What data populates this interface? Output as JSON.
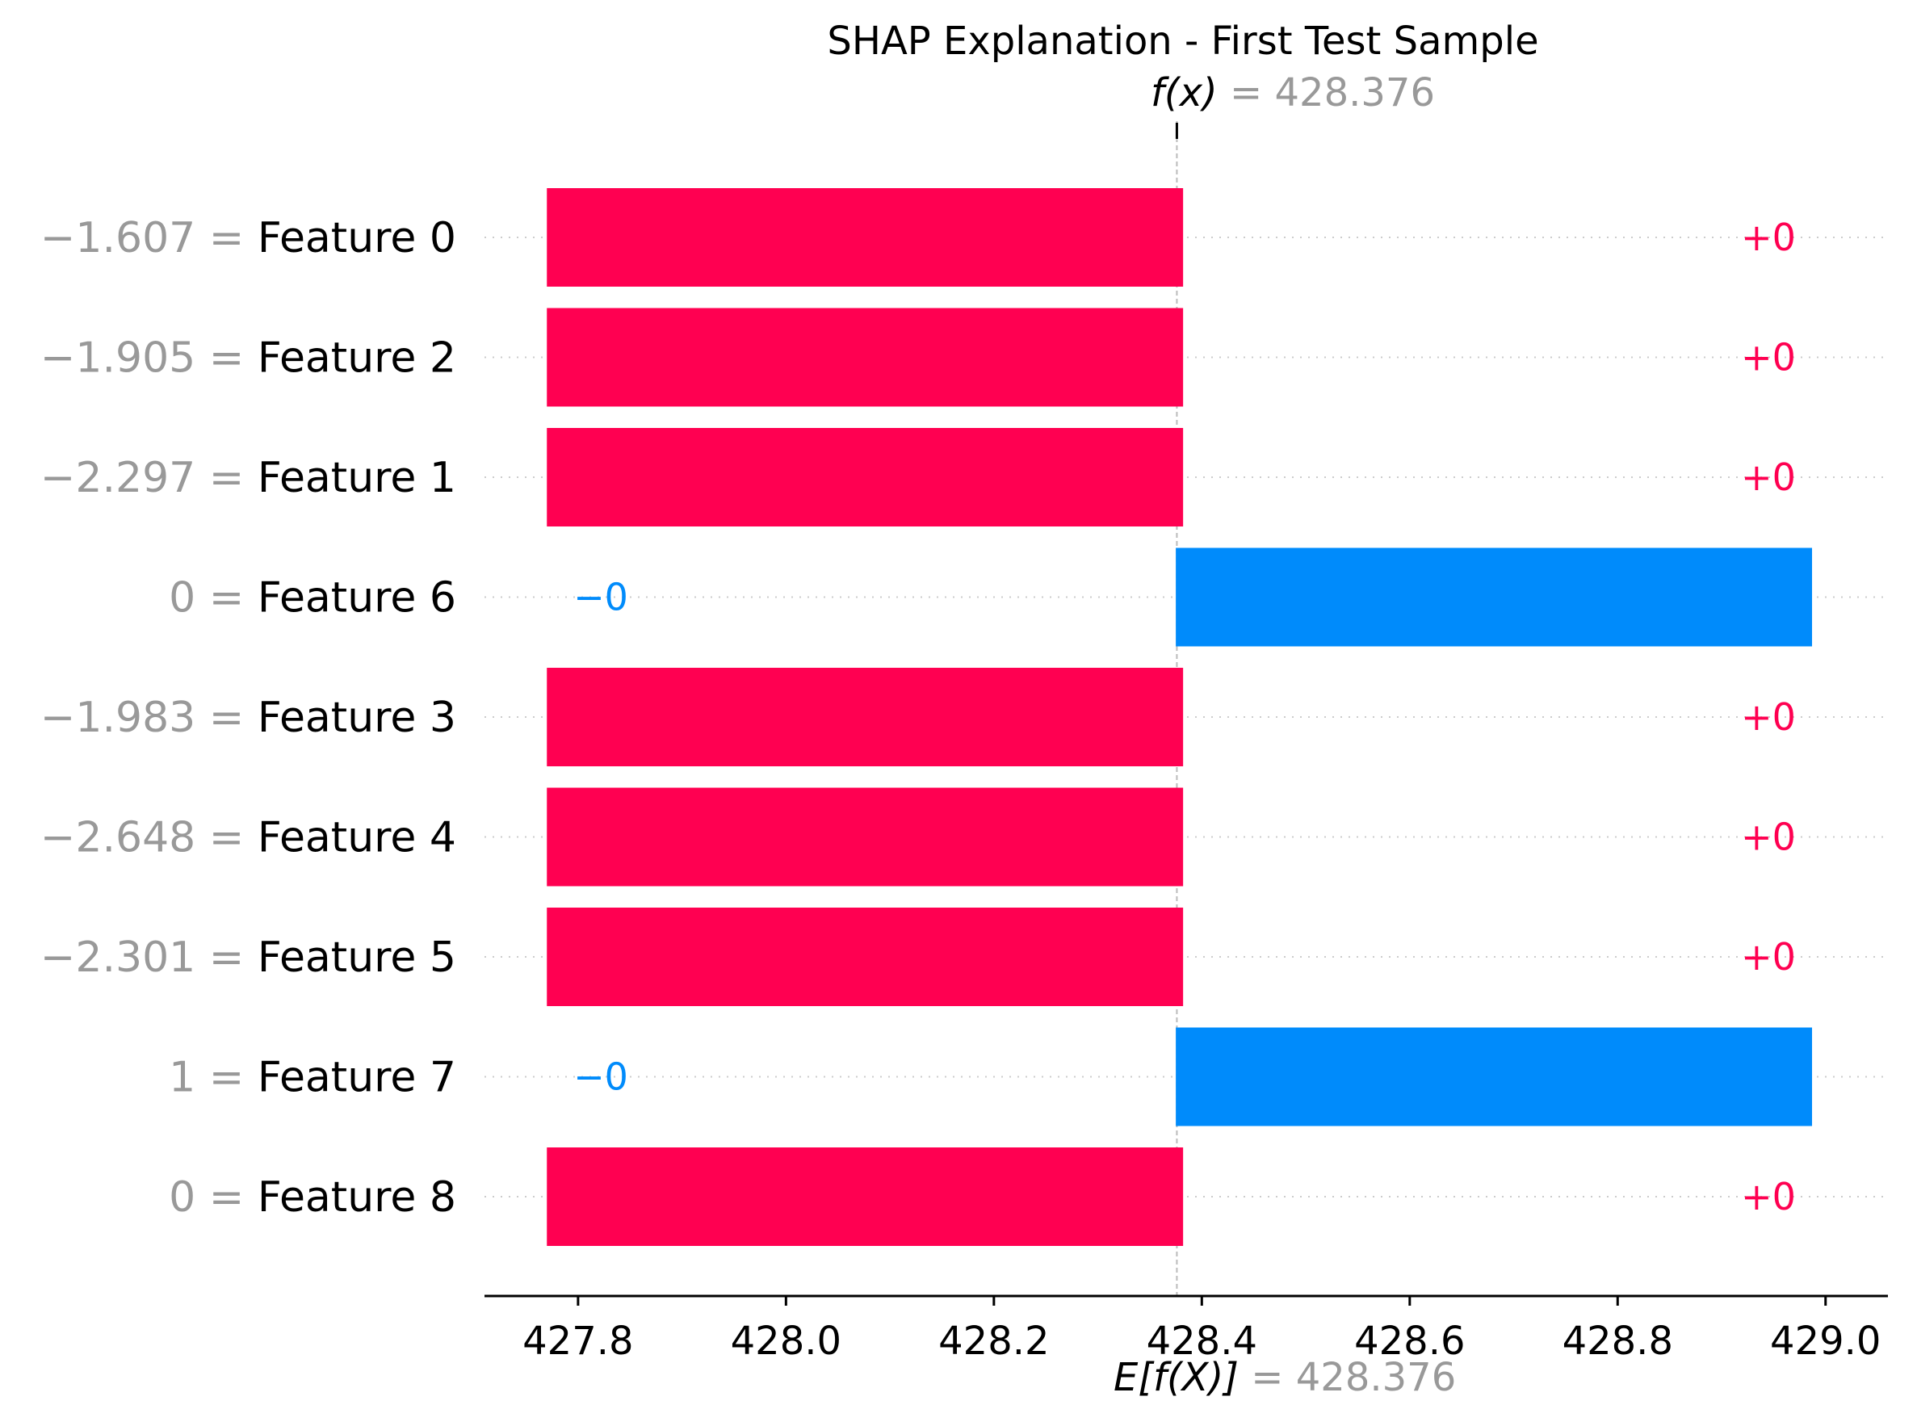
{
  "chart_data": {
    "type": "waterfall",
    "title": "SHAP Explanation - First Test Sample",
    "fx_label": "f(x)",
    "fx_value": "428.376",
    "ex_label": "E[f(X)]",
    "ex_value": "428.376",
    "base_value": 428.376,
    "xlim": [
      427.71,
      429.06
    ],
    "x_ticks": [
      {
        "value": 427.8,
        "label": "427.8"
      },
      {
        "value": 428.0,
        "label": "428.0"
      },
      {
        "value": 428.2,
        "label": "428.2"
      },
      {
        "value": 428.4,
        "label": "428.4"
      },
      {
        "value": 428.6,
        "label": "428.6"
      },
      {
        "value": 428.8,
        "label": "428.8"
      },
      {
        "value": 429.0,
        "label": "429.0"
      }
    ],
    "features": [
      {
        "name": "Feature 0",
        "value": "−1.607",
        "bar_start": 427.77,
        "bar_end": 428.382,
        "sign": "+",
        "label": "+0"
      },
      {
        "name": "Feature 2",
        "value": "−1.905",
        "bar_start": 427.77,
        "bar_end": 428.382,
        "sign": "+",
        "label": "+0"
      },
      {
        "name": "Feature 1",
        "value": "−2.297",
        "bar_start": 427.77,
        "bar_end": 428.382,
        "sign": "+",
        "label": "+0"
      },
      {
        "name": "Feature 6",
        "value": "0",
        "bar_start": 428.375,
        "bar_end": 428.987,
        "sign": "-",
        "label": "−0"
      },
      {
        "name": "Feature 3",
        "value": "−1.983",
        "bar_start": 427.77,
        "bar_end": 428.382,
        "sign": "+",
        "label": "+0"
      },
      {
        "name": "Feature 4",
        "value": "−2.648",
        "bar_start": 427.77,
        "bar_end": 428.382,
        "sign": "+",
        "label": "+0"
      },
      {
        "name": "Feature 5",
        "value": "−2.301",
        "bar_start": 427.77,
        "bar_end": 428.382,
        "sign": "+",
        "label": "+0"
      },
      {
        "name": "Feature 7",
        "value": "1",
        "bar_start": 428.375,
        "bar_end": 428.987,
        "sign": "-",
        "label": "−0"
      },
      {
        "name": "Feature 8",
        "value": "0",
        "bar_start": 427.77,
        "bar_end": 428.382,
        "sign": "+",
        "label": "+0"
      }
    ],
    "colors": {
      "positive": "#ff0051",
      "negative": "#008bfb",
      "muted": "#999999",
      "axis": "#000000",
      "grid": "#cccccc"
    }
  }
}
